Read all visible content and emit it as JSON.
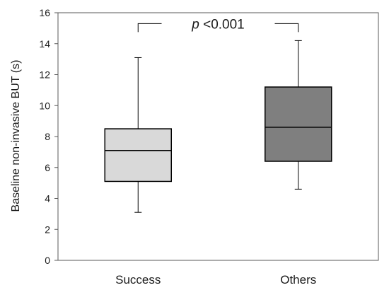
{
  "chart_data": {
    "type": "box",
    "ylabel": "Baseline non-invasive BUT (s)",
    "ylim": [
      0,
      16
    ],
    "yticks": [
      0,
      2,
      4,
      6,
      8,
      10,
      12,
      14,
      16
    ],
    "grid": false,
    "categories": [
      "Success",
      "Others"
    ],
    "boxes": [
      {
        "category": "Success",
        "min": 3.1,
        "q1": 5.1,
        "median": 7.1,
        "q3": 8.5,
        "max": 13.1,
        "color": "#d9d9d9"
      },
      {
        "category": "Others",
        "min": 4.6,
        "q1": 6.4,
        "median": 8.6,
        "q3": 11.2,
        "max": 14.2,
        "color": "#7f7f7f"
      }
    ],
    "annotation": {
      "text_italic": "p",
      "text_rest": " <0.001",
      "y": 15.3
    }
  }
}
